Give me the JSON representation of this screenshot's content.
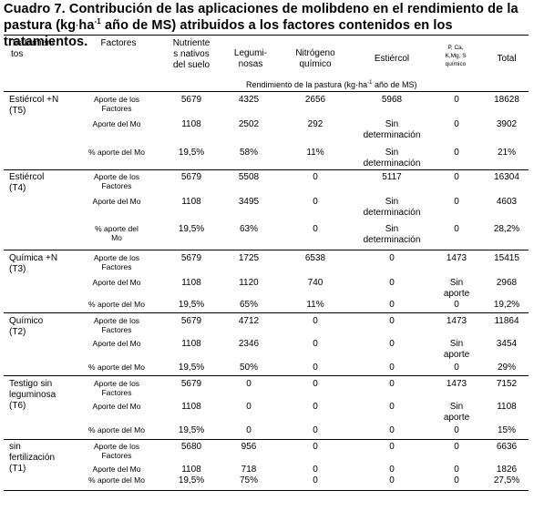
{
  "title": {
    "part1": "Cuadro 7. Contribución de las aplicaciones de molibdeno en el rendimiento de la",
    "part2a": "pastura (kg",
    "part2b": "ha",
    "sup1": "-1",
    "part2c": " año de MS) atribuidos a los factores contenidos en los tratamientos."
  },
  "headers": {
    "tratamientos": "Tratamien-\ntos",
    "factores": "Factores",
    "nutrientes": "Nutriente\ns nativos\ndel suelo",
    "leguminosas": "Legumi-\nnosas",
    "nitrogeno": "Nitrógeno\nquímico",
    "estiercol": "Estiércol",
    "pcak": "P, Ca,\nK,Mg, S\nquímico",
    "total": "Total",
    "subheader_a": "Rendimiento de la pastura (kg",
    "subheader_b": "ha",
    "subheader_sup": "-1",
    "subheader_c": " año de MS)"
  },
  "groups": [
    {
      "treatment": "Estiércol +N\n(T5)",
      "rows": [
        {
          "factor": "Aporte de los\nFactores",
          "nut": "5679",
          "leg": "4325",
          "nit": "2656",
          "est": "5968",
          "pca": "0",
          "tot": "18628"
        },
        {
          "factor": "Aporte del Mo",
          "nut": "1108",
          "leg": "2502",
          "nit": "292",
          "est": "Sin\ndeterminación",
          "pca": "0",
          "tot": "3902"
        },
        {
          "factor": "% aporte del Mo",
          "nut": "19,5%",
          "leg": "58%",
          "nit": "11%",
          "est": "Sin\ndeterminación",
          "pca": "0",
          "tot": "21%"
        }
      ]
    },
    {
      "treatment": "Estiércol\n(T4)",
      "rows": [
        {
          "factor": "Aporte de los\nFactores",
          "nut": "5679",
          "leg": "5508",
          "nit": "0",
          "est": "5117",
          "pca": "0",
          "tot": "16304"
        },
        {
          "factor": "Aporte del Mo",
          "nut": "1108",
          "leg": "3495",
          "nit": "0",
          "est": "Sin\ndeterminación",
          "pca": "0",
          "tot": "4603"
        },
        {
          "factor": "% aporte del\nMo",
          "nut": "19,5%",
          "leg": "63%",
          "nit": "0",
          "est": "Sin\ndeterminación",
          "pca": "0",
          "tot": "28,2%"
        }
      ]
    },
    {
      "treatment": "Química +N\n(T3)",
      "rows": [
        {
          "factor": "Aporte de los\nFactores",
          "nut": "5679",
          "leg": "1725",
          "nit": "6538",
          "est": "0",
          "pca": "1473",
          "tot": "15415"
        },
        {
          "factor": "Aporte del Mo",
          "nut": "1108",
          "leg": "1120",
          "nit": "740",
          "est": "0",
          "pca": "Sin\naporte",
          "tot": "2968"
        },
        {
          "factor": "% aporte del Mo",
          "nut": "19,5%",
          "leg": "65%",
          "nit": "11%",
          "est": "0",
          "pca": "0",
          "tot": "19,2%"
        }
      ]
    },
    {
      "treatment": "Químico\n(T2)",
      "rows": [
        {
          "factor": "Aporte de los\nFactores",
          "nut": "5679",
          "leg": "4712",
          "nit": "0",
          "est": "0",
          "pca": "1473",
          "tot": "11864"
        },
        {
          "factor": "Aporte del Mo",
          "nut": "1108",
          "leg": "2346",
          "nit": "0",
          "est": "0",
          "pca": "Sin\naporte",
          "tot": "3454"
        },
        {
          "factor": "% aporte del Mo",
          "nut": "19,5%",
          "leg": "50%",
          "nit": "0",
          "est": "0",
          "pca": "0",
          "tot": "29%"
        }
      ]
    },
    {
      "treatment": "Testigo sin\nleguminosa\n(T6)",
      "rows": [
        {
          "factor": "Aporte de los\nFactores",
          "nut": "5679",
          "leg": "0",
          "nit": "0",
          "est": "0",
          "pca": "1473",
          "tot": "7152"
        },
        {
          "factor": "Aporte del Mo",
          "nut": "1108",
          "leg": "0",
          "nit": "0",
          "est": "0",
          "pca": "Sin\naporte",
          "tot": "1108"
        },
        {
          "factor": "% aporte del Mo",
          "nut": "19,5%",
          "leg": "0",
          "nit": "0",
          "est": "0",
          "pca": "0",
          "tot": "15%"
        }
      ]
    },
    {
      "treatment": "sin\nfertilización\n(T1)",
      "rows": [
        {
          "factor": "Aporte de los\nFactores",
          "nut": "5680",
          "leg": "956",
          "nit": "0",
          "est": "0",
          "pca": "0",
          "tot": "6636"
        },
        {
          "factor": "Aporte del Mo",
          "nut": "1108",
          "leg": "718",
          "nit": "0",
          "est": "0",
          "pca": "0",
          "tot": "1826"
        },
        {
          "factor": "% aporte del Mo",
          "nut": "19,5%",
          "leg": "75%",
          "nit": "0",
          "est": "0",
          "pca": "0",
          "tot": "27,5%"
        }
      ]
    }
  ]
}
